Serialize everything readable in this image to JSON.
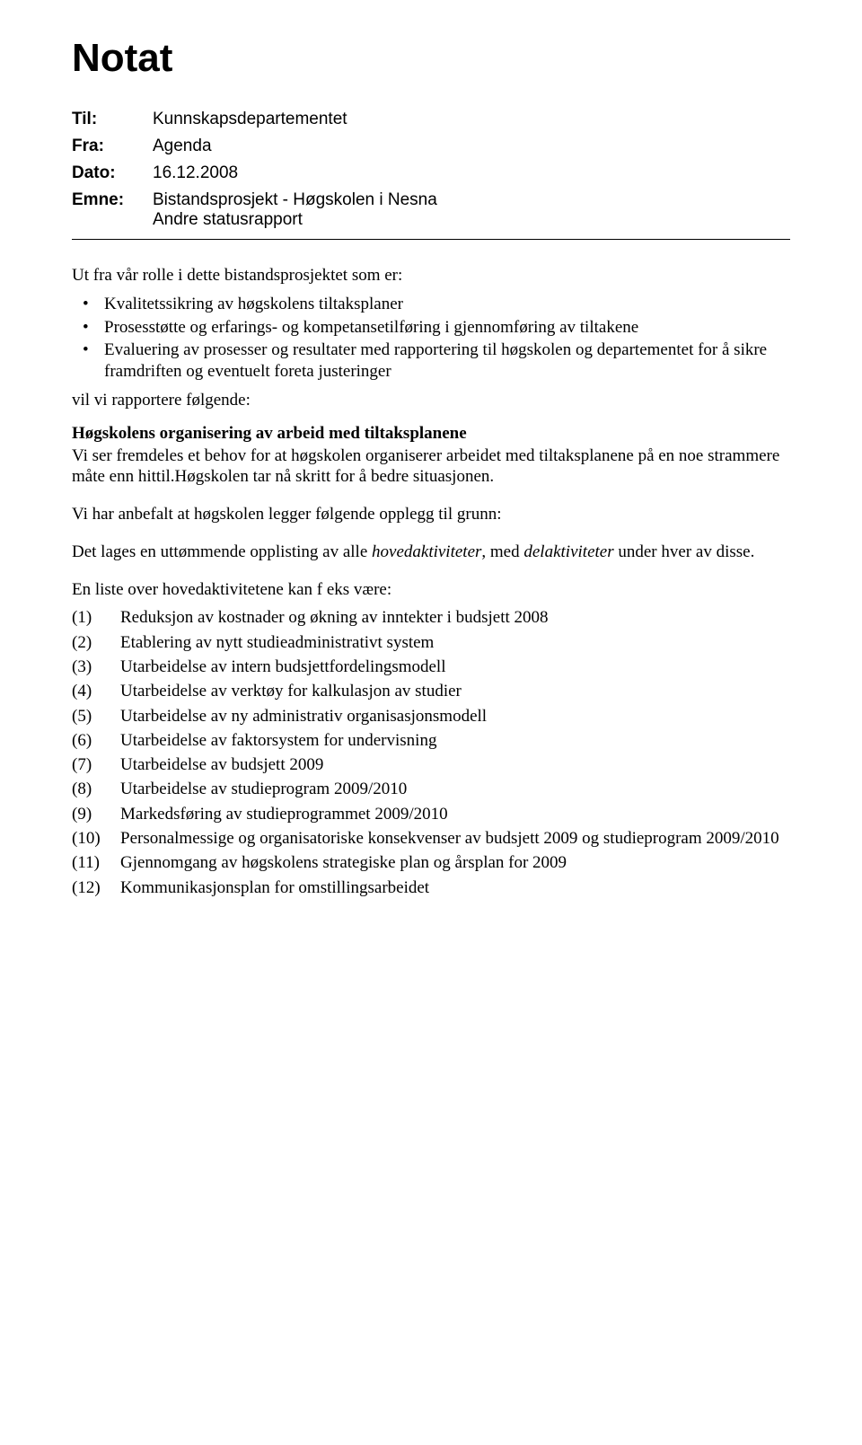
{
  "title": "Notat",
  "meta": {
    "to_label": "Til:",
    "to_value": "Kunnskapsdepartementet",
    "from_label": "Fra:",
    "from_value": "Agenda",
    "date_label": "Dato:",
    "date_value": "16.12.2008",
    "subject_label": "Emne:",
    "subject_line1": "Bistandsprosjekt - Høgskolen i Nesna",
    "subject_line2": "Andre statusrapport"
  },
  "intro": "Ut fra vår rolle i dette bistandsprosjektet som er:",
  "role_bullets": [
    "Kvalitetssikring av høgskolens tiltaksplaner",
    "Prosesstøtte og erfarings- og kompetansetilføring i gjennomføring av tiltakene",
    "Evaluering av prosesser og resultater med rapportering til høgskolen og departementet for å sikre framdriften og eventuelt foreta justeringer"
  ],
  "after_bullets": "vil vi rapportere følgende:",
  "section_heading": "Høgskolens organisering av arbeid med tiltaksplanene",
  "para1": "Vi ser fremdeles et behov for at høgskolen organiserer arbeidet med tiltaksplanene på en noe strammere måte enn hittil.Høgskolen tar nå skritt for å bedre situasjonen.",
  "para2": "Vi har anbefalt at høgskolen legger følgende opplegg til grunn:",
  "para3_pre": "Det lages en uttømmende opplisting av alle ",
  "para3_em1": "hovedaktiviteter",
  "para3_mid": ", med ",
  "para3_em2": "delaktiviteter",
  "para3_post": " under hver av disse.",
  "list_intro": "En liste over hovedaktivitetene kan f eks være:",
  "numbered": [
    {
      "n": "(1)",
      "t": "Reduksjon av kostnader og økning av inntekter i budsjett 2008"
    },
    {
      "n": "(2)",
      "t": "Etablering av nytt studieadministrativt system"
    },
    {
      "n": "(3)",
      "t": "Utarbeidelse av intern budsjettfordelingsmodell"
    },
    {
      "n": "(4)",
      "t": "Utarbeidelse av verktøy for kalkulasjon av studier"
    },
    {
      "n": "(5)",
      "t": "Utarbeidelse av ny administrativ organisasjonsmodell"
    },
    {
      "n": "(6)",
      "t": "Utarbeidelse av faktorsystem for undervisning"
    },
    {
      "n": "(7)",
      "t": "Utarbeidelse av budsjett 2009"
    },
    {
      "n": "(8)",
      "t": "Utarbeidelse av studieprogram 2009/2010"
    },
    {
      "n": "(9)",
      "t": "Markedsføring av studieprogrammet 2009/2010"
    },
    {
      "n": "(10)",
      "t": "Personalmessige og organisatoriske konsekvenser av budsjett 2009 og studieprogram 2009/2010"
    },
    {
      "n": "(11)",
      "t": "Gjennomgang av høgskolens strategiske plan og årsplan for 2009"
    },
    {
      "n": "(12)",
      "t": "Kommunikasjonsplan for omstillingsarbeidet"
    }
  ]
}
